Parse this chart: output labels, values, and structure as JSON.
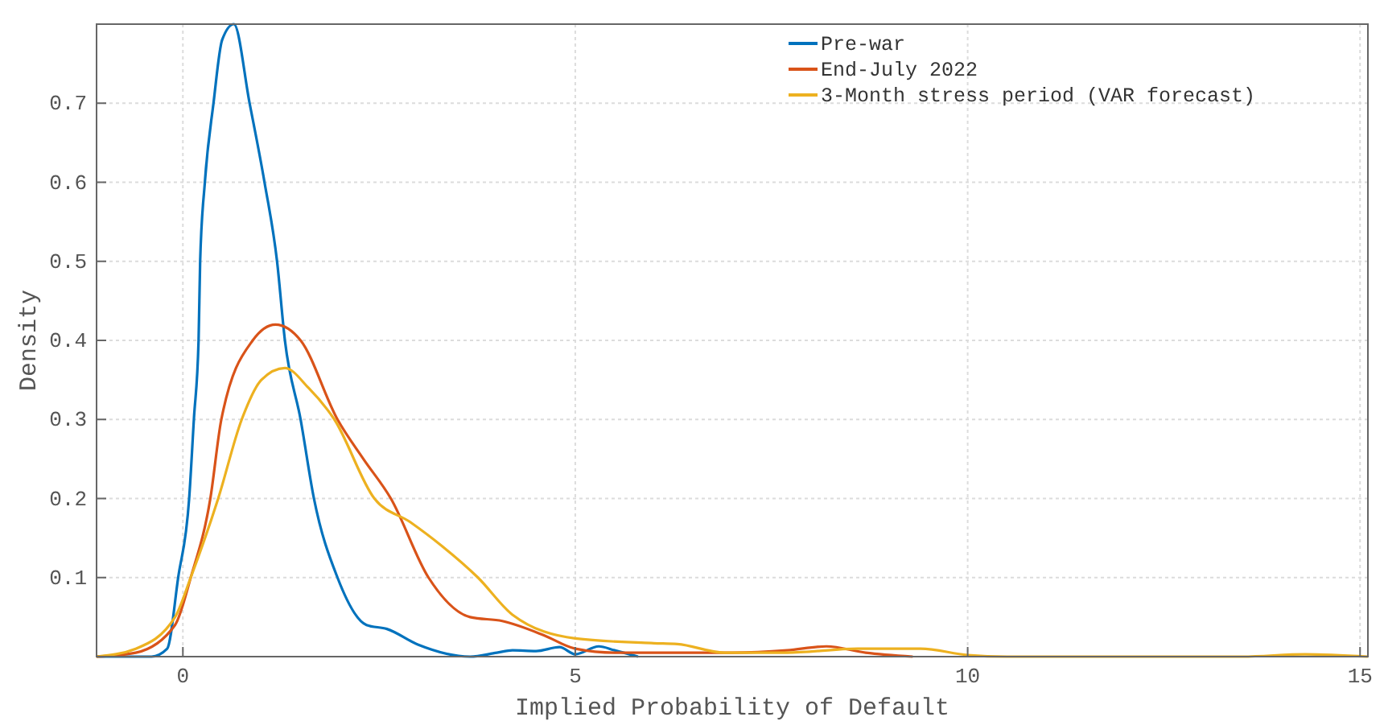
{
  "chart_data": {
    "type": "line",
    "xlabel": "Implied Probability of Default",
    "ylabel": "Density",
    "xlim": [
      -1.1,
      15.1
    ],
    "ylim": [
      0,
      0.8
    ],
    "xticks": [
      0,
      5,
      10,
      15
    ],
    "yticks": [
      0.1,
      0.2,
      0.3,
      0.4,
      0.5,
      0.6,
      0.7
    ],
    "grid": true,
    "legend": "top right",
    "marker": "none",
    "line_style": "solid",
    "series": [
      {
        "name": "Pre-war",
        "color": "#0072bd",
        "x": [
          -1.1,
          -0.4,
          -0.2,
          -0.06,
          0.08,
          0.14,
          0.2,
          0.22,
          0.28,
          0.39,
          0.5,
          0.65,
          0.85,
          1.04,
          1.2,
          1.3,
          1.5,
          1.67,
          1.97,
          2.34,
          2.6,
          3.0,
          3.66,
          4.0,
          4.2,
          4.5,
          4.8,
          5.0,
          5.3,
          5.5,
          5.8
        ],
        "values": [
          0,
          0,
          0.01,
          0.1,
          0.2,
          0.3,
          0.4,
          0.5,
          0.6,
          0.7,
          0.78,
          0.8,
          0.7,
          0.6,
          0.5,
          0.4,
          0.3,
          0.2,
          0.1,
          0.04,
          0.035,
          0.015,
          0,
          0.005,
          0.008,
          0.007,
          0.012,
          0.003,
          0.013,
          0.008,
          0
        ]
      },
      {
        "name": "End-July 2022",
        "color": "#d95319",
        "x": [
          -1.1,
          -0.6,
          -0.1,
          0.1,
          0.35,
          0.49,
          0.89,
          1.18,
          1.5,
          1.97,
          2.3,
          2.65,
          3.13,
          3.66,
          4.07,
          4.6,
          5.0,
          5.5,
          7.0,
          7.7,
          8.2,
          8.7,
          9.3
        ],
        "values": [
          0,
          0.005,
          0.04,
          0.1,
          0.2,
          0.3,
          0.4,
          0.42,
          0.4,
          0.3,
          0.25,
          0.2,
          0.1,
          0.05,
          0.045,
          0.027,
          0.01,
          0.005,
          0.005,
          0.008,
          0.013,
          0.005,
          0
        ]
      },
      {
        "name": "3-Month stress period (VAR forecast)",
        "color": "#edb120",
        "x": [
          -1.1,
          -0.6,
          -0.1,
          0.1,
          0.45,
          0.75,
          1.0,
          1.3,
          1.6,
          1.93,
          2.44,
          2.9,
          3.3,
          3.76,
          4.2,
          5.0,
          6.0,
          6.3,
          6.9,
          7.7,
          8.6,
          9.4,
          10.0,
          10.5,
          13.5,
          14.3,
          15.1
        ],
        "values": [
          0,
          0.01,
          0.05,
          0.1,
          0.2,
          0.3,
          0.35,
          0.365,
          0.34,
          0.3,
          0.2,
          0.17,
          0.14,
          0.1,
          0.053,
          0.023,
          0.017,
          0.016,
          0.005,
          0.005,
          0.01,
          0.01,
          0.002,
          0,
          0,
          0.003,
          0
        ]
      }
    ]
  }
}
